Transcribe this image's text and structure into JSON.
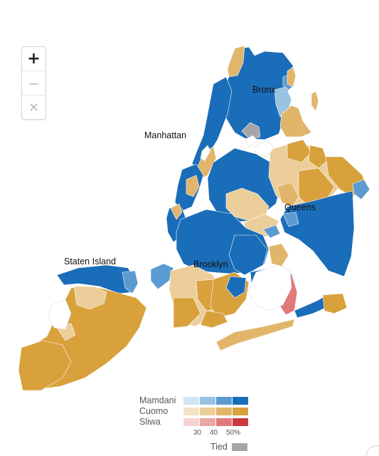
{
  "zoom": {
    "zoom_in_icon": "+",
    "zoom_out_icon": "−",
    "reset_icon": "✕"
  },
  "labels": {
    "bronx": "Bronx",
    "manhattan": "Manhattan",
    "queens": "Queens",
    "brooklyn": "Brooklyn",
    "staten_island": "Staten Island"
  },
  "legend": {
    "candidates": [
      {
        "name": "Mamdani",
        "colors": [
          "#cfe6f4",
          "#98c3e2",
          "#5a9bd1",
          "#1a6db8"
        ]
      },
      {
        "name": "Cuomo",
        "colors": [
          "#f4e3c6",
          "#ecce9b",
          "#e2b66a",
          "#d8a13c"
        ]
      },
      {
        "name": "Sliwa",
        "colors": [
          "#f6d3d2",
          "#eaa7a5",
          "#e0797a",
          "#c93a3c"
        ]
      }
    ],
    "ticks": [
      "30",
      "40",
      "50%"
    ],
    "tied_label": "Tied",
    "tied_color": "#a6a6a6"
  },
  "colors": {
    "mamdani": "#1a6db8",
    "mamdani_light": "#5a9bd1",
    "mamdani_pale": "#98c3e2",
    "cuomo": "#d8a13c",
    "cuomo_light": "#e2b66a",
    "cuomo_pale": "#ecce9b",
    "sliwa": "#e0797a",
    "tied": "#a6a6a6"
  }
}
